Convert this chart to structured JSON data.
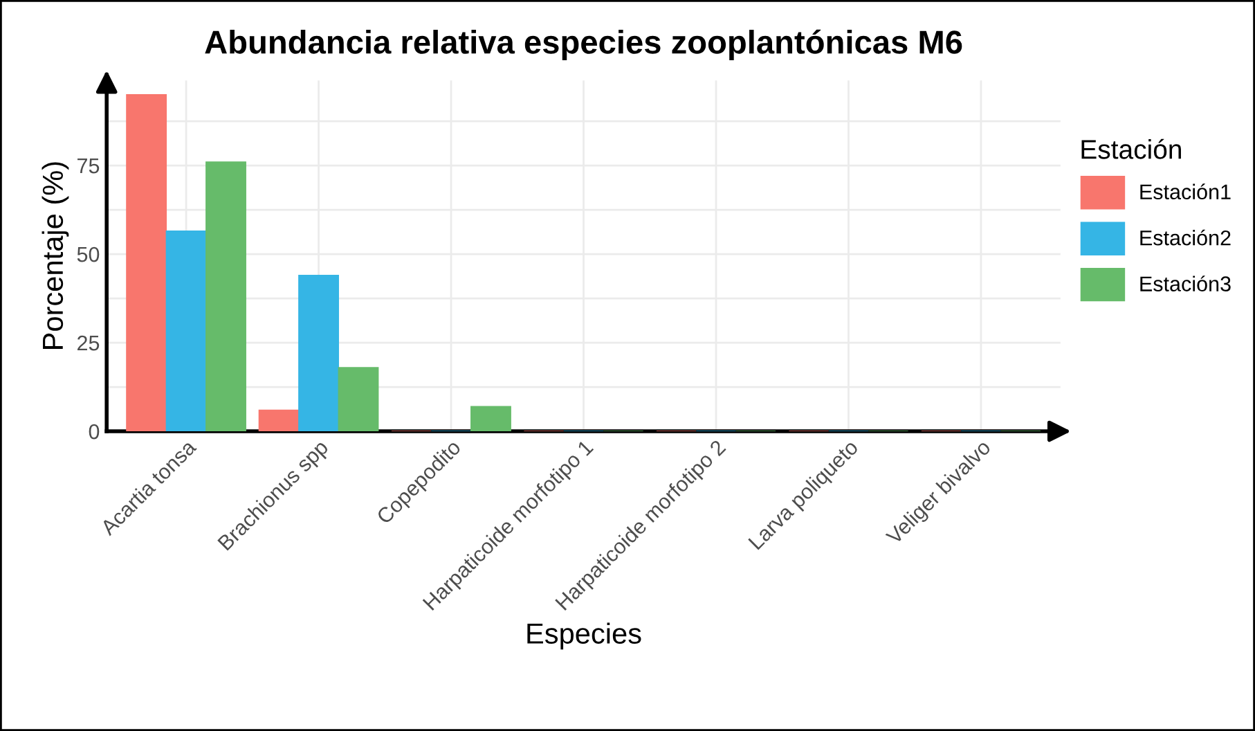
{
  "chart_data": {
    "type": "bar",
    "title": "Abundancia relativa especies zooplantónicas M6",
    "xlabel": "Especies",
    "ylabel": "Porcentaje (%)",
    "legend_title": "Estación",
    "categories": [
      "Acartia tonsa",
      "Brachionus spp",
      "Copepodito",
      "Harpaticoide morfotipo 1",
      "Harpaticoide morfotipo 2",
      "Larva poliqueto",
      "Veliger bivalvo"
    ],
    "series": [
      {
        "name": "Estación1",
        "color": "#f8766d",
        "values": [
          95,
          6,
          0,
          0,
          0,
          0,
          0
        ]
      },
      {
        "name": "Estación2",
        "color": "#35b5e5",
        "values": [
          56.5,
          44,
          0,
          0,
          0,
          0,
          0
        ]
      },
      {
        "name": "Estación3",
        "color": "#66bb6a",
        "values": [
          76,
          18,
          7,
          0,
          0,
          0,
          0
        ]
      }
    ],
    "ylim": [
      0,
      99
    ],
    "yticks": [
      0,
      25,
      50,
      75
    ],
    "grid": true,
    "legend": "right"
  }
}
